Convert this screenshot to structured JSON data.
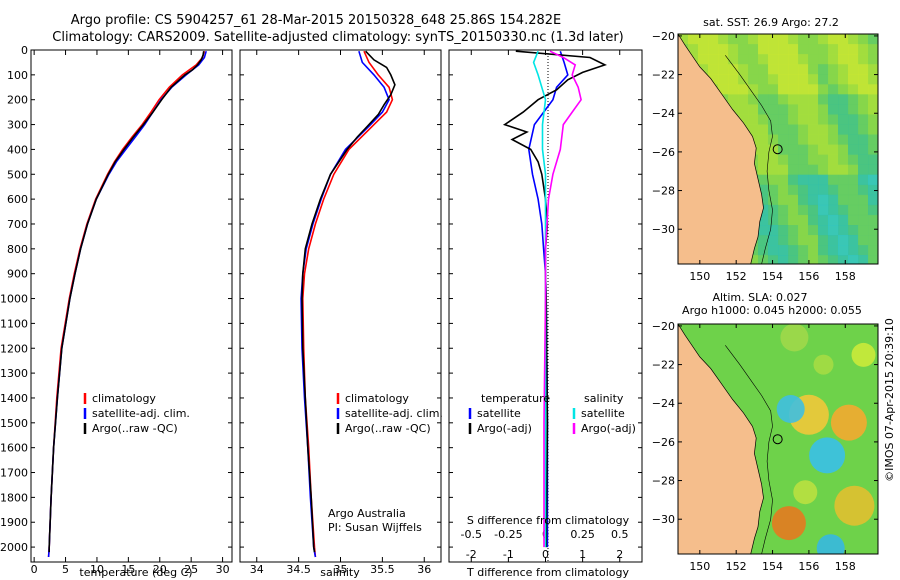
{
  "header": {
    "line1": "Argo profile: CS 5904257_61 28-Mar-2015 20150328_648 25.86S 154.282E",
    "line2": "Climatology: CARS2009. Satellite-adjusted climatology: synTS_20150330.nc (1.3d later)"
  },
  "colors": {
    "climatology": "#ff0000",
    "satellite": "#0000ff",
    "argo": "#000000",
    "sal_satellite": "#00e5e5",
    "sal_argo": "#ff00ff",
    "land": "#f5be8c"
  },
  "chart_data": [
    {
      "type": "line",
      "id": "temperature",
      "xlabel": "temperature (deg C)",
      "ylabel": "",
      "xlim": [
        -0.5,
        31.5
      ],
      "ylim": [
        2060,
        0
      ],
      "xticks": [
        0,
        5,
        10,
        15,
        20,
        25,
        30
      ],
      "yticks": [
        0,
        100,
        200,
        300,
        400,
        500,
        600,
        700,
        800,
        900,
        1000,
        1100,
        1200,
        1300,
        1400,
        1500,
        1600,
        1700,
        1800,
        1900,
        2000
      ],
      "legend": [
        "climatology",
        "satellite-adj. clim.",
        "Argo(..raw -QC)"
      ],
      "series": [
        {
          "name": "climatology",
          "depth": [
            5,
            30,
            60,
            100,
            150,
            200,
            250,
            300,
            350,
            400,
            450,
            500,
            600,
            700,
            800,
            900,
            1000,
            1200,
            1400,
            1600,
            1800,
            2000,
            2040
          ],
          "values": [
            27.1,
            26.8,
            25.8,
            23.6,
            21.5,
            19.9,
            18.6,
            17.2,
            15.6,
            14.1,
            12.8,
            11.7,
            9.8,
            8.4,
            7.3,
            6.4,
            5.6,
            4.3,
            3.6,
            3.1,
            2.7,
            2.4,
            2.3
          ]
        },
        {
          "name": "satellite-adj. clim.",
          "depth": [
            5,
            30,
            60,
            100,
            150,
            200,
            250,
            300,
            350,
            400,
            450,
            500,
            600,
            700,
            800,
            900,
            1000,
            1200,
            1400,
            1600,
            1800,
            2000,
            2040
          ],
          "values": [
            27.4,
            27.1,
            26.2,
            24.2,
            21.9,
            20.2,
            18.9,
            17.6,
            16.1,
            14.6,
            13.1,
            11.9,
            9.9,
            8.5,
            7.4,
            6.5,
            5.7,
            4.4,
            3.7,
            3.1,
            2.7,
            2.4,
            2.3
          ]
        },
        {
          "name": "Argo(..raw -QC)",
          "depth": [
            5,
            20,
            40,
            60,
            80,
            100,
            150,
            200,
            250,
            300,
            350,
            400,
            450,
            500,
            600,
            700,
            800,
            900,
            1000,
            1200,
            1400,
            1600,
            1800,
            2000,
            2020
          ],
          "values": [
            27.0,
            26.9,
            26.6,
            26.0,
            25.2,
            24.0,
            21.8,
            20.3,
            18.9,
            17.4,
            15.8,
            14.3,
            12.9,
            11.8,
            9.9,
            8.5,
            7.4,
            6.5,
            5.7,
            4.4,
            3.7,
            3.1,
            2.7,
            2.4,
            2.4
          ]
        }
      ]
    },
    {
      "type": "line",
      "id": "salinity",
      "xlabel": "salinity",
      "xlim": [
        33.8,
        36.2
      ],
      "ylim": [
        2060,
        0
      ],
      "xticks": [
        34,
        34.5,
        35,
        35.5,
        36
      ],
      "legend": [
        "climatology",
        "satellite-adj. clim.",
        "Argo(..raw -QC)"
      ],
      "note": [
        "Argo Australia",
        "PI: Susan Wijffels"
      ],
      "series": [
        {
          "name": "climatology",
          "depth": [
            5,
            50,
            100,
            150,
            200,
            250,
            300,
            400,
            500,
            600,
            700,
            800,
            900,
            1000,
            1200,
            1400,
            1600,
            1800,
            2000,
            2040
          ],
          "values": [
            35.28,
            35.34,
            35.45,
            35.58,
            35.62,
            35.55,
            35.4,
            35.1,
            34.92,
            34.8,
            34.7,
            34.62,
            34.57,
            34.55,
            34.56,
            34.58,
            34.62,
            34.65,
            34.69,
            34.7
          ]
        },
        {
          "name": "satellite-adj. clim.",
          "depth": [
            5,
            50,
            100,
            150,
            200,
            250,
            300,
            400,
            500,
            600,
            700,
            800,
            900,
            1000,
            1200,
            1400,
            1600,
            1800,
            2000,
            2040
          ],
          "values": [
            35.22,
            35.26,
            35.4,
            35.52,
            35.58,
            35.5,
            35.36,
            35.06,
            34.88,
            34.77,
            34.67,
            34.59,
            34.55,
            34.53,
            34.54,
            34.57,
            34.61,
            34.64,
            34.68,
            34.7
          ]
        },
        {
          "name": "Argo(..raw -QC)",
          "depth": [
            5,
            40,
            70,
            100,
            140,
            180,
            220,
            260,
            300,
            350,
            400,
            500,
            600,
            700,
            800,
            900,
            1000,
            1200,
            1400,
            1600,
            1800,
            2000,
            2020
          ],
          "values": [
            35.3,
            35.4,
            35.55,
            35.6,
            35.65,
            35.6,
            35.52,
            35.45,
            35.34,
            35.2,
            35.08,
            34.88,
            34.76,
            34.66,
            34.58,
            34.55,
            34.54,
            34.55,
            34.58,
            34.61,
            34.65,
            34.68,
            34.69
          ]
        }
      ]
    },
    {
      "type": "line",
      "id": "difference",
      "xlabel": "T difference from climatology",
      "xlabel_top": "S difference from climatology",
      "xlim": [
        -2.6,
        2.6
      ],
      "ylim": [
        2060,
        0
      ],
      "xticks": [
        -2,
        -1,
        0,
        1,
        2
      ],
      "sticks": [
        -0.5,
        -0.25,
        0,
        0.25,
        0.5
      ],
      "legend_temperature": {
        "title": "temperature",
        "items": [
          "satellite",
          "Argo(-adj)"
        ]
      },
      "legend_salinity": {
        "title": "salinity",
        "items": [
          "satellite",
          "Argo(-adj)"
        ]
      },
      "series": [
        {
          "name": "T satellite",
          "depth": [
            5,
            50,
            100,
            150,
            200,
            300,
            400,
            500,
            600,
            700,
            800,
            900,
            1000,
            1500,
            2000
          ],
          "values": [
            0.4,
            0.5,
            0.6,
            0.3,
            0.2,
            -0.3,
            -0.45,
            -0.35,
            -0.2,
            -0.1,
            -0.05,
            0.0,
            0.02,
            0.05,
            0.05
          ]
        },
        {
          "name": "T Argo(-adj)",
          "depth": [
            5,
            30,
            60,
            90,
            120,
            160,
            200,
            250,
            300,
            330,
            360,
            400,
            450,
            500,
            600,
            700,
            800,
            900,
            1000,
            1500,
            2000
          ],
          "values": [
            -0.8,
            1.2,
            1.6,
            1.0,
            0.6,
            0.3,
            -0.2,
            -0.6,
            -1.1,
            -0.5,
            -0.9,
            -0.4,
            -0.2,
            -0.1,
            0.0,
            0.05,
            0.0,
            0.0,
            0.02,
            0.05,
            0.02
          ]
        },
        {
          "name": "S satellite",
          "depth": [
            5,
            50,
            100,
            200,
            300,
            400,
            500,
            700,
            1000,
            1500,
            2000
          ],
          "values": [
            -0.05,
            -0.08,
            -0.05,
            0.0,
            -0.02,
            -0.02,
            0.0,
            0.0,
            0.0,
            0.0,
            0.0
          ]
        },
        {
          "name": "S Argo(-adj)",
          "depth": [
            5,
            30,
            60,
            100,
            150,
            200,
            250,
            300,
            400,
            500,
            600,
            800,
            1000,
            1500,
            2000
          ],
          "values": [
            0.03,
            0.12,
            0.2,
            0.18,
            0.22,
            0.24,
            0.18,
            0.12,
            0.1,
            0.05,
            0.02,
            0.0,
            0.0,
            -0.01,
            -0.01
          ]
        }
      ]
    },
    {
      "type": "heatmap",
      "id": "sst_map",
      "title": "sat. SST: 26.9 Argo: 27.2",
      "xlim": [
        148.8,
        159.8
      ],
      "ylim": [
        -31.8,
        -19.9
      ],
      "xticks": [
        150,
        152,
        154,
        156,
        158
      ],
      "yticks": [
        -20,
        -22,
        -24,
        -26,
        -28,
        -30
      ],
      "marker": {
        "lon": 154.282,
        "lat": -25.86
      }
    },
    {
      "type": "heatmap",
      "id": "sla_map",
      "title": "Altim. SLA: 0.027",
      "subtitle": "Argo h1000: 0.045 h2000: 0.055",
      "xlim": [
        148.8,
        159.8
      ],
      "ylim": [
        -31.8,
        -19.9
      ],
      "xticks": [
        150,
        152,
        154,
        156,
        158
      ],
      "yticks": [
        -20,
        -22,
        -24,
        -26,
        -28,
        -30
      ],
      "marker": {
        "lon": 154.282,
        "lat": -25.86
      }
    }
  ],
  "footer": {
    "stamp": "©IMOS 07-Apr-2015 20:39:10"
  }
}
